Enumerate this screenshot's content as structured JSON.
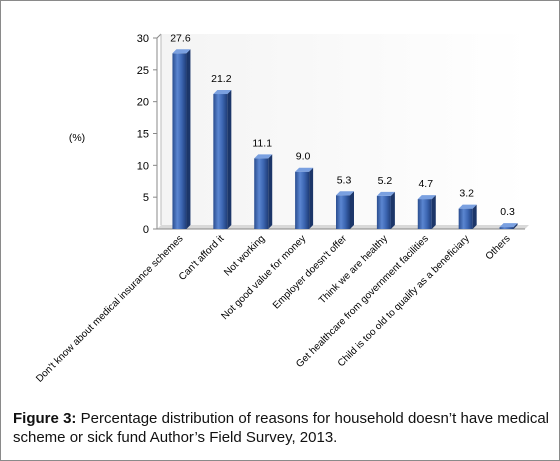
{
  "chart_data": {
    "type": "bar",
    "ylabel": "(%)",
    "ylim": [
      0,
      30
    ],
    "yticks": [
      0,
      5,
      10,
      15,
      20,
      25,
      30
    ],
    "categories": [
      "Don't know about medical insurance schemes",
      "Can't afford it",
      "Not working",
      "Not good value for money",
      "Employer doesn't offer",
      "Think we are healthy",
      "Get healthcare from government facilities",
      "Child is too old to qualify as a beneficiary",
      "Others"
    ],
    "values": [
      27.6,
      21.2,
      11.1,
      9.0,
      5.3,
      5.2,
      4.7,
      3.2,
      0.3
    ],
    "data_labels": [
      "27.6",
      "21.2",
      "11.1",
      "9.0",
      "5.3",
      "5.2",
      "4.7",
      "3.2",
      "0.3"
    ],
    "bar_color": "#3a64b0",
    "grid": false,
    "style": "3d-cylinder"
  },
  "caption": {
    "label": "Figure 3:",
    "text": " Percentage distribution of reasons for household doesn’t have medical scheme or sick fund Author’s Field Survey, 2013."
  }
}
